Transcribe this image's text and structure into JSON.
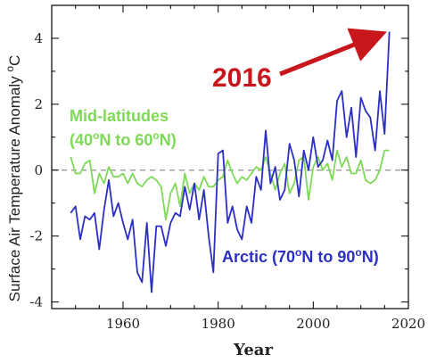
{
  "chart_data": {
    "type": "line",
    "title": "",
    "xlabel": "Year",
    "ylabel": "Surface Air Temperature Anomaly °C",
    "xlim": [
      1945,
      2020
    ],
    "ylim": [
      -4.2,
      5.0
    ],
    "xticks": [
      1960,
      1980,
      2000,
      2020
    ],
    "xtick_labels": [
      "1960",
      "1980",
      "2000",
      "2020"
    ],
    "yticks": [
      -4,
      -2,
      0,
      2,
      4
    ],
    "ytick_labels": [
      "-4",
      "-2",
      "0",
      "2",
      "4"
    ],
    "grid": false,
    "zero_line": true,
    "x": [
      1949,
      1950,
      1951,
      1952,
      1953,
      1954,
      1955,
      1956,
      1957,
      1958,
      1959,
      1960,
      1961,
      1962,
      1963,
      1964,
      1965,
      1966,
      1967,
      1968,
      1969,
      1970,
      1971,
      1972,
      1973,
      1974,
      1975,
      1976,
      1977,
      1978,
      1979,
      1980,
      1981,
      1982,
      1983,
      1984,
      1985,
      1986,
      1987,
      1988,
      1989,
      1990,
      1991,
      1992,
      1993,
      1994,
      1995,
      1996,
      1997,
      1998,
      1999,
      2000,
      2001,
      2002,
      2003,
      2004,
      2005,
      2006,
      2007,
      2008,
      2009,
      2010,
      2011,
      2012,
      2013,
      2014,
      2015,
      2016
    ],
    "series": [
      {
        "name": "Arctic",
        "color": "#2b2fc4",
        "values": [
          -1.3,
          -1.1,
          -2.1,
          -1.4,
          -1.5,
          -1.3,
          -2.4,
          -1.2,
          -0.3,
          -1.4,
          -1.0,
          -1.6,
          -2.1,
          -1.5,
          -3.1,
          -3.4,
          -1.6,
          -3.7,
          -1.7,
          -1.7,
          -2.3,
          -1.6,
          -1.3,
          -1.4,
          -0.5,
          -1.2,
          -0.4,
          -1.5,
          -0.6,
          -2.0,
          -3.1,
          0.5,
          0.6,
          -1.6,
          -1.1,
          -1.8,
          -2.1,
          -1.1,
          -1.6,
          -0.2,
          -0.6,
          1.2,
          -0.4,
          0.1,
          -0.9,
          -0.6,
          0.8,
          0.3,
          -0.8,
          0.6,
          0.0,
          1.0,
          0.1,
          0.3,
          0.9,
          0.3,
          2.1,
          2.4,
          1.0,
          1.9,
          0.4,
          2.2,
          1.8,
          1.6,
          0.6,
          2.4,
          1.1,
          4.2
        ]
      },
      {
        "name": "Mid-latitudes",
        "color": "#7ed957",
        "values": [
          0.4,
          -0.1,
          -0.1,
          0.2,
          0.3,
          -0.7,
          -0.1,
          -0.4,
          0.1,
          -0.2,
          -0.2,
          -0.1,
          -0.4,
          -0.1,
          -0.4,
          -0.5,
          -0.3,
          -0.2,
          -0.3,
          -0.5,
          -1.5,
          -0.7,
          -0.4,
          -1.1,
          -0.1,
          -0.7,
          -0.4,
          -0.6,
          -0.2,
          -0.5,
          -0.5,
          -0.3,
          -0.2,
          0.3,
          -0.1,
          -0.4,
          -0.2,
          -0.3,
          -0.1,
          0.1,
          0.0,
          0.4,
          -0.1,
          -0.6,
          -0.1,
          0.2,
          -0.7,
          -0.4,
          0.3,
          0.4,
          -0.9,
          0.1,
          0.4,
          0.0,
          0.2,
          -0.3,
          0.6,
          0.1,
          0.4,
          -0.1,
          -0.1,
          0.3,
          -0.3,
          -0.4,
          -0.3,
          0.0,
          0.6,
          0.6
        ]
      }
    ],
    "annotations": {
      "mid_line1": "Mid-latitudes",
      "mid_line2_a": "(40",
      "mid_line2_b": "o",
      "mid_line2_c": "N to 60",
      "mid_line2_d": "o",
      "mid_line2_e": "N)",
      "arctic_a": "Arctic (70",
      "arctic_b": "o",
      "arctic_c": "N to 90",
      "arctic_d": "o",
      "arctic_e": "N)",
      "highlight": "2016",
      "highlight_color": "#c8161d"
    }
  },
  "y_title": {
    "main": "Surface Air Temperature Anomaly ",
    "sup": "o",
    "unit": "C"
  }
}
